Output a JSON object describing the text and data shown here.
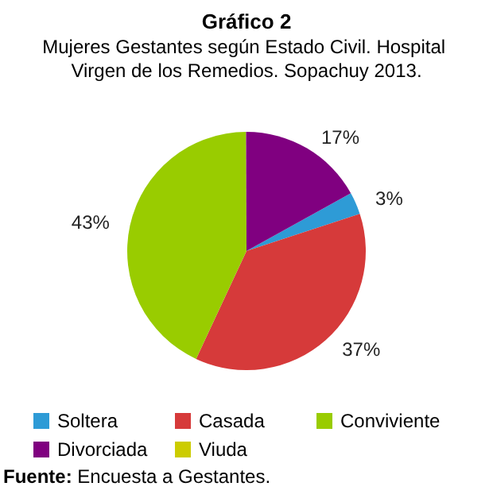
{
  "chart_data": {
    "type": "pie",
    "title": "Gráfico 2",
    "subtitle": "Mujeres Gestantes según Estado Civil. Hospital Virgen de los Remedios. Sopachuy 2013.",
    "categories": [
      "Soltera",
      "Casada",
      "Conviviente",
      "Divorciada",
      "Viuda"
    ],
    "values": [
      3,
      37,
      43,
      17,
      0
    ],
    "value_labels": [
      "3%",
      "37%",
      "43%",
      "17%",
      null
    ],
    "colors": [
      "#2e9bd6",
      "#d63a3a",
      "#99cc00",
      "#800080",
      "#cccc00"
    ],
    "legend": "bottom",
    "annotations": [
      "Fuente: Encuesta a Gestantes."
    ]
  }
}
